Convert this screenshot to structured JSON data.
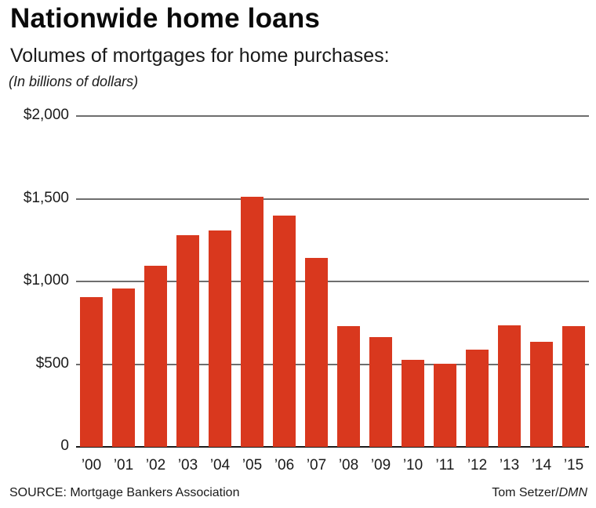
{
  "header": {
    "title": "Nationwide home loans",
    "subtitle": "Volumes of mortgages for home purchases:",
    "unit_note": "(In billions of dollars)"
  },
  "footer": {
    "source": "SOURCE: Mortgage Bankers Association",
    "credit_name": "Tom Setzer/",
    "credit_org": "DMN"
  },
  "colors": {
    "bar": "#d9381e",
    "gridline": "#6e6e6e",
    "baseline": "#1a1a1a"
  },
  "chart_data": {
    "type": "bar",
    "title": "Nationwide home loans",
    "subtitle": "Volumes of mortgages for home purchases:",
    "xlabel": "",
    "ylabel": "(In billions of dollars)",
    "ylim": [
      0,
      2000
    ],
    "yticks": [
      0,
      500,
      1000,
      1500,
      2000
    ],
    "ytick_labels": [
      "0",
      "$500",
      "$1,000",
      "$1,500",
      "$2,000"
    ],
    "grid": true,
    "legend": null,
    "categories": [
      "'00",
      "'01",
      "'02",
      "'03",
      "'04",
      "'05",
      "'06",
      "'07",
      "'08",
      "'09",
      "'10",
      "'11",
      "'12",
      "'13",
      "'14",
      "'15"
    ],
    "values": [
      905,
      957,
      1095,
      1280,
      1308,
      1510,
      1398,
      1142,
      730,
      663,
      526,
      502,
      588,
      735,
      635,
      730
    ],
    "source": "SOURCE: Mortgage Bankers Association",
    "credit": "Tom Setzer/DMN"
  }
}
